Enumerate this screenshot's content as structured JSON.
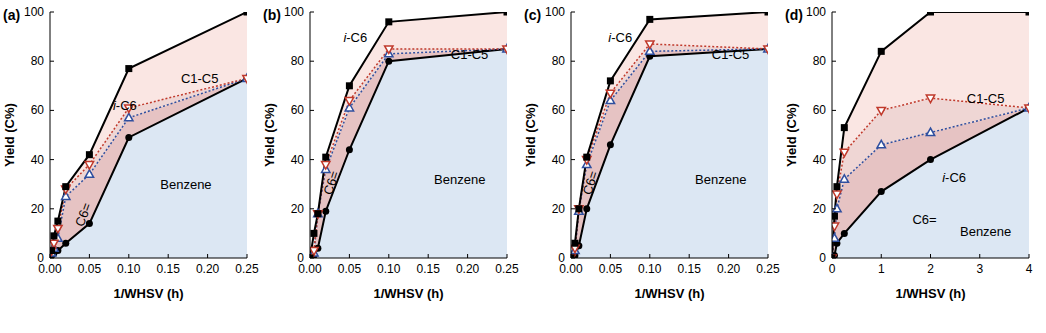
{
  "chart_data": [
    {
      "type": "area",
      "title": "(a)",
      "xlabel": "1/WHSV (h)",
      "ylabel": "Yield (C%)",
      "stacked": true,
      "x": [
        0.002,
        0.005,
        0.01,
        0.02,
        0.05,
        0.1,
        0.25
      ],
      "xlim": [
        0,
        0.25
      ],
      "xticks": [
        {
          "value": 0,
          "label": "0.00"
        },
        0.05,
        {
          "value": 0.1,
          "label": "0.10"
        },
        0.15,
        {
          "value": 0.2,
          "label": "0.20"
        },
        0.25
      ],
      "ylim": [
        0,
        100
      ],
      "yticks": [
        0,
        20,
        40,
        60,
        80,
        100
      ],
      "series": [
        {
          "name": "Benzene",
          "color": "#000000",
          "marker": "circle",
          "line_style": "solid",
          "values": [
            1,
            2,
            3,
            6,
            14,
            49,
            73
          ]
        },
        {
          "name": "C6=",
          "color": "#2f4f9f",
          "marker": "triangle-up",
          "line_style": "dotted",
          "values": [
            1,
            2,
            5,
            19,
            20,
            8,
            0
          ]
        },
        {
          "name": "i-C6",
          "color": "#c0392b",
          "marker": "triangle-down",
          "line_style": "dotted",
          "values": [
            1,
            2,
            4,
            3,
            4,
            4,
            0
          ]
        },
        {
          "name": "C1-C5",
          "color": "#000000",
          "marker": "square",
          "line_style": "solid",
          "values": [
            0,
            3,
            3,
            1,
            4,
            16,
            27
          ]
        }
      ]
    },
    {
      "type": "area",
      "title": "(b)",
      "xlabel": "1/WHSV (h)",
      "ylabel": "Yield (C%)",
      "stacked": true,
      "x": [
        0,
        0.005,
        0.01,
        0.02,
        0.05,
        0.1,
        0.25
      ],
      "xlim": [
        0,
        0.25
      ],
      "xticks": [
        {
          "value": 0,
          "label": "0.00"
        },
        0.05,
        {
          "value": 0.1,
          "label": "0.10"
        },
        0.15,
        {
          "value": 0.2,
          "label": "0.20"
        },
        0.25
      ],
      "ylim": [
        0,
        100
      ],
      "yticks": [
        0,
        20,
        40,
        60,
        80,
        100
      ],
      "series": [
        {
          "name": "Benzene",
          "color": "#000000",
          "marker": "circle",
          "line_style": "solid",
          "values": [
            0,
            1,
            4,
            19,
            44,
            80,
            85
          ]
        },
        {
          "name": "C6=",
          "color": "#2f4f9f",
          "marker": "triangle-up",
          "line_style": "dotted",
          "values": [
            0,
            1,
            14,
            17,
            17,
            3,
            0
          ]
        },
        {
          "name": "i-C6",
          "color": "#c0392b",
          "marker": "triangle-down",
          "line_style": "dotted",
          "values": [
            0,
            1,
            0,
            2,
            3,
            2,
            0
          ]
        },
        {
          "name": "C1-C5",
          "color": "#000000",
          "marker": "square",
          "line_style": "solid",
          "values": [
            0,
            7,
            0,
            3,
            6,
            11,
            15
          ]
        }
      ]
    },
    {
      "type": "area",
      "title": "(c)",
      "xlabel": "1/WHSV (h)",
      "ylabel": "Yield (C%)",
      "stacked": true,
      "x": [
        0,
        0.005,
        0.01,
        0.02,
        0.05,
        0.1,
        0.25
      ],
      "xlim": [
        0,
        0.25
      ],
      "xticks": [
        {
          "value": 0,
          "label": "0.00"
        },
        0.05,
        {
          "value": 0.1,
          "label": "0.10"
        },
        0.15,
        {
          "value": 0.2,
          "label": "0.20"
        },
        0.25
      ],
      "ylim": [
        0,
        100
      ],
      "yticks": [
        0,
        20,
        40,
        60,
        80,
        100
      ],
      "series": [
        {
          "name": "Benzene",
          "color": "#000000",
          "marker": "circle",
          "line_style": "solid",
          "values": [
            0,
            1,
            5,
            20,
            46,
            82,
            85
          ]
        },
        {
          "name": "C6=",
          "color": "#2f4f9f",
          "marker": "triangle-up",
          "line_style": "dotted",
          "values": [
            0,
            2,
            14,
            18,
            18,
            2,
            0
          ]
        },
        {
          "name": "i-C6",
          "color": "#c0392b",
          "marker": "triangle-down",
          "line_style": "dotted",
          "values": [
            0,
            1,
            1,
            2,
            3,
            3,
            0
          ]
        },
        {
          "name": "C1-C5",
          "color": "#000000",
          "marker": "square",
          "line_style": "solid",
          "values": [
            0,
            2,
            0,
            1,
            5,
            10,
            15
          ]
        }
      ]
    },
    {
      "type": "area",
      "title": "(d)",
      "xlabel": "1/WHSV (h)",
      "ylabel": "Yield (C%)",
      "stacked": true,
      "x": [
        0,
        0.05,
        0.1,
        0.25,
        1,
        2,
        4
      ],
      "xlim": [
        0,
        4
      ],
      "xticks": [
        0,
        1,
        2,
        3,
        4
      ],
      "ylim": [
        0,
        100
      ],
      "yticks": [
        0,
        20,
        40,
        60,
        80,
        100
      ],
      "series": [
        {
          "name": "Benzene",
          "color": "#000000",
          "marker": "circle",
          "line_style": "solid",
          "values": [
            0,
            1,
            6,
            10,
            27,
            40,
            61
          ]
        },
        {
          "name": "C6=",
          "color": "#2f4f9f",
          "marker": "triangle-up",
          "line_style": "dotted",
          "values": [
            0,
            7,
            14,
            22,
            19,
            11,
            0
          ]
        },
        {
          "name": "i-C6",
          "color": "#c0392b",
          "marker": "triangle-down",
          "line_style": "dotted",
          "values": [
            0,
            5,
            6,
            11,
            14,
            14,
            0
          ]
        },
        {
          "name": "C1-C5",
          "color": "#000000",
          "marker": "square",
          "line_style": "solid",
          "values": [
            0,
            4,
            3,
            10,
            24,
            35,
            39
          ]
        }
      ]
    }
  ]
}
